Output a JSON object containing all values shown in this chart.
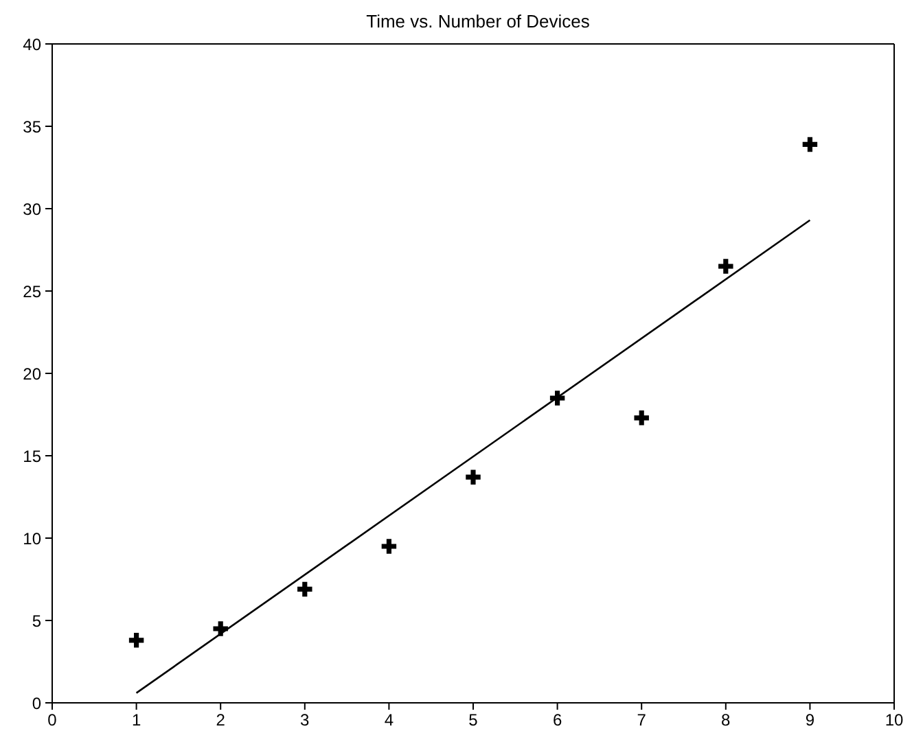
{
  "chart_data": {
    "type": "scatter",
    "title": "Time vs. Number of Devices",
    "series": [
      {
        "color": "#000000",
        "marker": "cross",
        "x": [
          1,
          2,
          3,
          4,
          5,
          6,
          7,
          8,
          9
        ],
        "values": [
          3.8,
          4.5,
          6.9,
          9.5,
          13.7,
          18.5,
          17.3,
          26.5,
          33.9
        ]
      },
      {
        "type": "line",
        "color": "#000000",
        "marker": "none",
        "x": [
          1,
          9
        ],
        "values": [
          0.6,
          29.3
        ]
      }
    ],
    "xlim": [
      0,
      10
    ],
    "xticks": [
      0,
      1,
      2,
      3,
      4,
      5,
      6,
      7,
      8,
      9,
      10
    ],
    "ylim": [
      0,
      40
    ],
    "yticks": [
      0,
      5,
      10,
      15,
      20,
      25,
      30,
      35,
      40
    ],
    "grid": false
  }
}
